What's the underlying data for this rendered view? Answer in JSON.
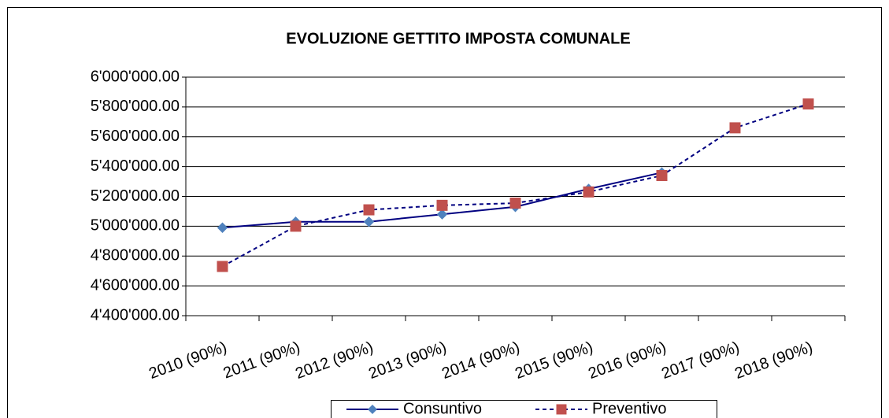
{
  "chart_data": {
    "type": "line",
    "title": "EVOLUZIONE GETTITO IMPOSTA COMUNALE",
    "categories": [
      "2010 (90%)",
      "2011 (90%)",
      "2012 (90%)",
      "2013 (90%)",
      "2014 (90%)",
      "2015 (90%)",
      "2016 (90%)",
      "2017 (90%)",
      "2018 (90%)"
    ],
    "series": [
      {
        "name": "Consuntivo",
        "color": "#000080",
        "marker": "diamond",
        "marker_color": "#4f81bd",
        "dashed": false,
        "values": [
          4990000,
          5030000,
          5030000,
          5080000,
          5130000,
          5250000,
          5360000,
          null,
          null
        ]
      },
      {
        "name": "Preventivo",
        "color": "#000080",
        "marker": "square",
        "marker_color": "#c0504d",
        "dashed": true,
        "values": [
          4730000,
          5000000,
          5110000,
          5140000,
          5155000,
          5230000,
          5340000,
          5660000,
          5820000
        ]
      }
    ],
    "ylim": [
      4400000,
      6000000
    ],
    "yticks": [
      {
        "value": 4400000,
        "label": "4'400'000.00"
      },
      {
        "value": 4600000,
        "label": "4'600'000.00"
      },
      {
        "value": 4800000,
        "label": "4'800'000.00"
      },
      {
        "value": 5000000,
        "label": "5'000'000.00"
      },
      {
        "value": 5200000,
        "label": "5'200'000.00"
      },
      {
        "value": 5400000,
        "label": "5'400'000.00"
      },
      {
        "value": 5600000,
        "label": "5'600'000.00"
      },
      {
        "value": 5800000,
        "label": "5'800'000.00"
      },
      {
        "value": 6000000,
        "label": "6'000'000.00"
      }
    ],
    "grid": true,
    "legend": "bottom"
  }
}
